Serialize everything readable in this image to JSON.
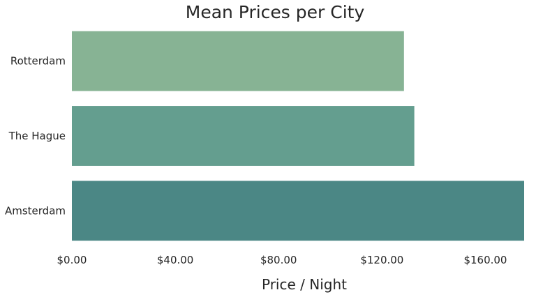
{
  "chart_data": {
    "type": "bar",
    "orientation": "horizontal",
    "title": "Mean Prices per City",
    "xlabel": "Price / Night",
    "ylabel": "",
    "categories": [
      "Rotterdam",
      "The Hague",
      "Amsterdam"
    ],
    "values": [
      128.5,
      132.5,
      175
    ],
    "xlim": [
      0,
      175
    ],
    "x_ticks": [
      0,
      40,
      80,
      120,
      160
    ],
    "x_tick_labels": [
      "$0.00",
      "$40.00",
      "$80.00",
      "$120.00",
      "$160.00"
    ],
    "colors": [
      "#87b394",
      "#649e8f",
      "#4b8785"
    ],
    "grid": false,
    "legend": "none"
  }
}
